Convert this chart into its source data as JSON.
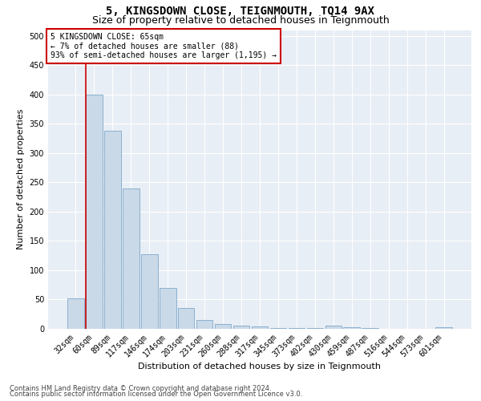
{
  "title": "5, KINGSDOWN CLOSE, TEIGNMOUTH, TQ14 9AX",
  "subtitle": "Size of property relative to detached houses in Teignmouth",
  "xlabel": "Distribution of detached houses by size in Teignmouth",
  "ylabel": "Number of detached properties",
  "categories": [
    "32sqm",
    "60sqm",
    "89sqm",
    "117sqm",
    "146sqm",
    "174sqm",
    "203sqm",
    "231sqm",
    "260sqm",
    "288sqm",
    "317sqm",
    "345sqm",
    "373sqm",
    "402sqm",
    "430sqm",
    "459sqm",
    "487sqm",
    "516sqm",
    "544sqm",
    "573sqm",
    "601sqm"
  ],
  "values": [
    52,
    400,
    338,
    240,
    128,
    70,
    35,
    15,
    8,
    6,
    4,
    2,
    1,
    1,
    5,
    3,
    1,
    0,
    0,
    0,
    3
  ],
  "bar_color": "#c9d9e8",
  "bar_edge_color": "#7fa8c9",
  "ylim": [
    0,
    510
  ],
  "yticks": [
    0,
    50,
    100,
    150,
    200,
    250,
    300,
    350,
    400,
    450,
    500
  ],
  "property_line_x": 1.0,
  "property_line_color": "#cc0000",
  "annotation_box_text": "5 KINGSDOWN CLOSE: 65sqm\n← 7% of detached houses are smaller (88)\n93% of semi-detached houses are larger (1,195) →",
  "annotation_box_color": "#cc0000",
  "annotation_box_bg": "#ffffff",
  "footer1": "Contains HM Land Registry data © Crown copyright and database right 2024.",
  "footer2": "Contains public sector information licensed under the Open Government Licence v3.0.",
  "plot_bg_color": "#e8eef5",
  "title_fontsize": 10,
  "subtitle_fontsize": 9,
  "axis_label_fontsize": 8,
  "tick_fontsize": 7,
  "footer_fontsize": 6
}
